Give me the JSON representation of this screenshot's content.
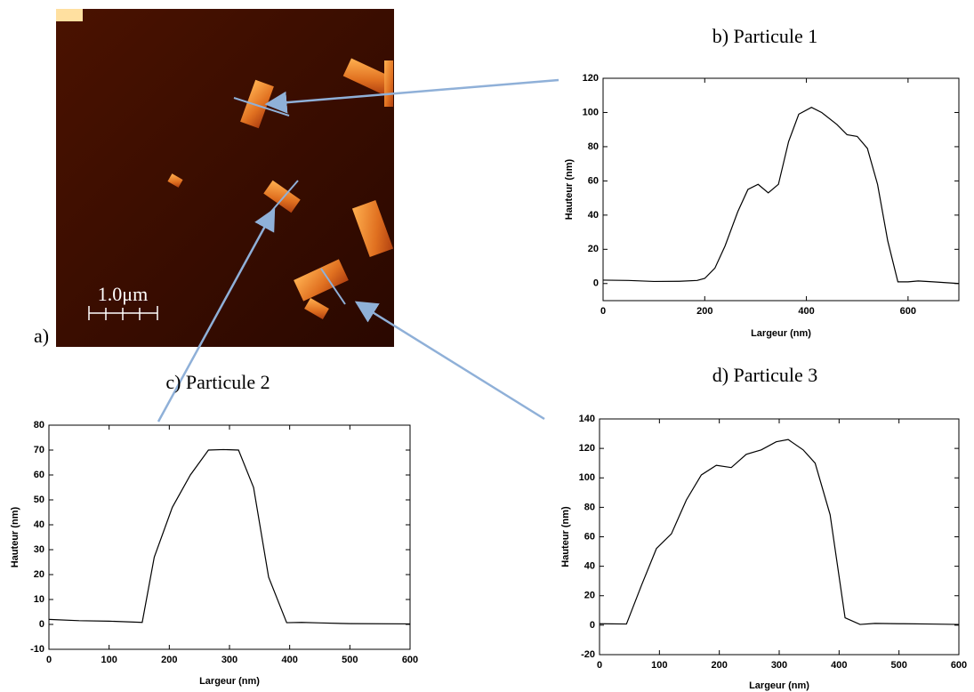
{
  "image": {
    "label": "a)",
    "scale_bar": "1.0μm"
  },
  "chart_data": [
    {
      "type": "line",
      "title": "b) Particule 1",
      "x_label": "Largeur (nm)",
      "y_label": "Hauteur (nm)",
      "x": [
        0,
        50,
        100,
        150,
        185,
        200,
        220,
        240,
        265,
        285,
        305,
        325,
        345,
        365,
        385,
        410,
        430,
        460,
        480,
        500,
        520,
        540,
        560,
        580,
        600,
        620,
        650,
        700
      ],
      "values": [
        2,
        1.8,
        1.2,
        1.3,
        1.8,
        3,
        9,
        22,
        42,
        55,
        58,
        53,
        58,
        83,
        99,
        103,
        100,
        93,
        87,
        86,
        79,
        58,
        25,
        1,
        1,
        1.5,
        1,
        0
      ],
      "color": "#000000",
      "xlim": [
        0,
        700
      ],
      "ylim": [
        -10,
        120
      ],
      "xticks": [
        0,
        200,
        400,
        600
      ],
      "yticks": [
        0,
        20,
        40,
        60,
        80,
        100,
        120
      ]
    },
    {
      "type": "line",
      "title": "c) Particule 2",
      "x_label": "Largeur (nm)",
      "y_label": "Hauteur (nm)",
      "x": [
        0,
        50,
        100,
        155,
        175,
        205,
        235,
        265,
        290,
        315,
        340,
        365,
        395,
        420,
        450,
        500,
        600
      ],
      "values": [
        2,
        1.5,
        1.3,
        0.8,
        27,
        47,
        60,
        70,
        70.2,
        70,
        55,
        19,
        0.7,
        0.8,
        0.6,
        0.3,
        0.2
      ],
      "color": "#000000",
      "xlim": [
        0,
        600
      ],
      "ylim": [
        -10,
        80
      ],
      "xticks": [
        0,
        100,
        200,
        300,
        400,
        500,
        600
      ],
      "yticks": [
        -10,
        0,
        10,
        20,
        30,
        40,
        50,
        60,
        70,
        80
      ]
    },
    {
      "type": "line",
      "title": "d) Particule 3",
      "x_label": "Largeur (nm)",
      "y_label": "Hauteur (nm)",
      "x": [
        0,
        45,
        70,
        95,
        120,
        145,
        170,
        195,
        220,
        245,
        270,
        295,
        315,
        340,
        360,
        385,
        410,
        435,
        460,
        500,
        550,
        600
      ],
      "values": [
        1,
        0.8,
        27,
        52,
        62,
        85,
        102,
        108.5,
        107,
        116,
        119,
        124.5,
        126,
        119,
        110,
        75,
        5,
        0.5,
        1.2,
        1,
        0.8,
        0.5
      ],
      "color": "#000000",
      "xlim": [
        0,
        600
      ],
      "ylim": [
        -20,
        140
      ],
      "xticks": [
        0,
        100,
        200,
        300,
        400,
        500,
        600
      ],
      "yticks": [
        -20,
        0,
        20,
        40,
        60,
        80,
        100,
        120,
        140
      ]
    }
  ]
}
